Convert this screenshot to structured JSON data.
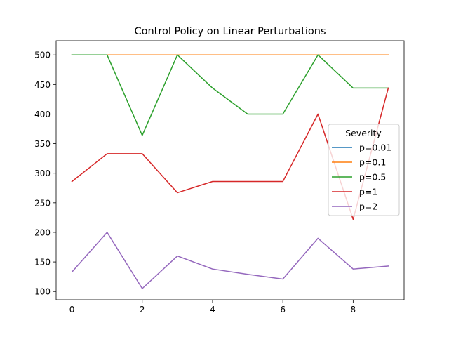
{
  "chart_data": {
    "type": "line",
    "title": "Control Policy on Linear Perturbations",
    "xlabel": "",
    "ylabel": "",
    "x": [
      0,
      1,
      2,
      3,
      4,
      5,
      6,
      7,
      8,
      9
    ],
    "xlim": [
      -0.45,
      9.45
    ],
    "ylim": [
      86,
      524
    ],
    "xticks": [
      0,
      2,
      4,
      6,
      8
    ],
    "yticks": [
      100,
      150,
      200,
      250,
      300,
      350,
      400,
      450,
      500
    ],
    "grid": false,
    "legend": {
      "title": "Severity",
      "placement": "center-right"
    },
    "series": [
      {
        "name": "p=0.01",
        "color": "#1f77b4",
        "values": [
          500,
          500,
          500,
          500,
          500,
          500,
          500,
          500,
          500,
          500
        ]
      },
      {
        "name": "p=0.1",
        "color": "#ff7f0e",
        "values": [
          500,
          500,
          500,
          500,
          500,
          500,
          500,
          500,
          500,
          500
        ]
      },
      {
        "name": "p=0.5",
        "color": "#2ca02c",
        "values": [
          500,
          500,
          364,
          500,
          444,
          400,
          400,
          500,
          444,
          444
        ]
      },
      {
        "name": "p=1",
        "color": "#d62728",
        "values": [
          286,
          333,
          333,
          267,
          286,
          286,
          286,
          400,
          222,
          444
        ]
      },
      {
        "name": "p=2",
        "color": "#9467bd",
        "values": [
          133,
          200,
          105,
          160,
          138,
          129,
          121,
          190,
          138,
          143
        ]
      }
    ]
  }
}
